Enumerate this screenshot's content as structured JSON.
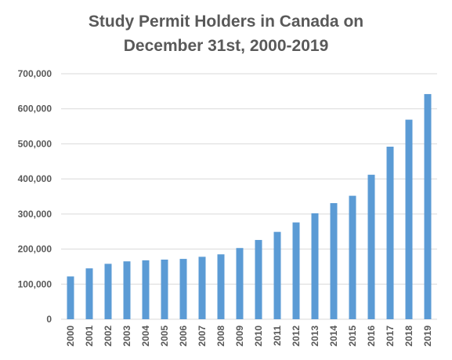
{
  "chart_data": {
    "type": "bar",
    "title_line1": "Study Permit Holders in Canada on",
    "title_line2": "December 31st, 2000-2019",
    "xlabel": "",
    "ylabel": "",
    "categories": [
      "2000",
      "2001",
      "2002",
      "2003",
      "2004",
      "2005",
      "2006",
      "2007",
      "2008",
      "2009",
      "2010",
      "2011",
      "2012",
      "2013",
      "2014",
      "2015",
      "2016",
      "2017",
      "2018",
      "2019"
    ],
    "values": [
      122000,
      145000,
      158000,
      165000,
      168000,
      170000,
      172000,
      178000,
      185000,
      203000,
      226000,
      249000,
      276000,
      302000,
      331000,
      352000,
      412000,
      492000,
      569000,
      642000
    ],
    "ylim": [
      0,
      700000
    ],
    "yticks": [
      0,
      100000,
      200000,
      300000,
      400000,
      500000,
      600000,
      700000
    ],
    "ytick_labels": [
      "0",
      "100,000",
      "200,000",
      "300,000",
      "400,000",
      "500,000",
      "600,000",
      "700,000"
    ],
    "grid": true,
    "bar_color": "#5B9BD5",
    "grid_color": "#D9D9D9",
    "text_color": "#595959"
  }
}
